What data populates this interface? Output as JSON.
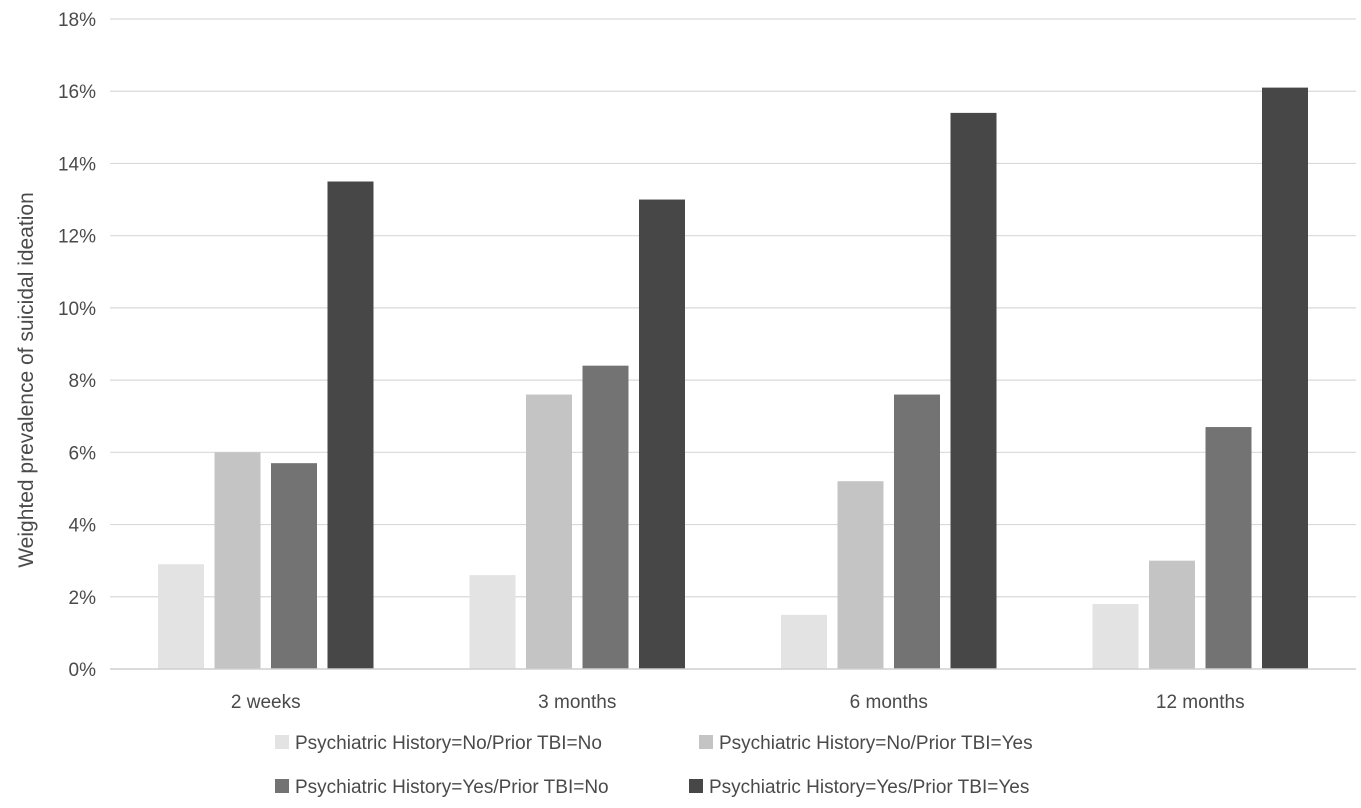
{
  "chart_data": {
    "type": "bar",
    "title": "",
    "xlabel": "",
    "ylabel": "Weighted prevalence of suicidal ideation",
    "ylim": [
      0,
      18
    ],
    "y_ticks": [
      0,
      2,
      4,
      6,
      8,
      10,
      12,
      14,
      16,
      18
    ],
    "y_tick_format": "percent",
    "grid": "horizontal",
    "legend_position": "bottom",
    "categories": [
      "2 weeks",
      "3 months",
      "6 months",
      "12 months"
    ],
    "series": [
      {
        "name": "Psychiatric History=No/Prior TBI=No",
        "color": "#e3e3e3",
        "values": [
          2.9,
          2.6,
          1.5,
          1.8
        ]
      },
      {
        "name": "Psychiatric History=No/Prior TBI=Yes",
        "color": "#c4c4c4",
        "values": [
          6.0,
          7.6,
          5.2,
          3.0
        ]
      },
      {
        "name": "Psychiatric History=Yes/Prior TBI=No",
        "color": "#737373",
        "values": [
          5.7,
          8.4,
          7.6,
          6.7
        ]
      },
      {
        "name": "Psychiatric History=Yes/Prior TBI=Yes",
        "color": "#474747",
        "values": [
          13.5,
          13.0,
          15.4,
          16.1
        ]
      }
    ]
  }
}
